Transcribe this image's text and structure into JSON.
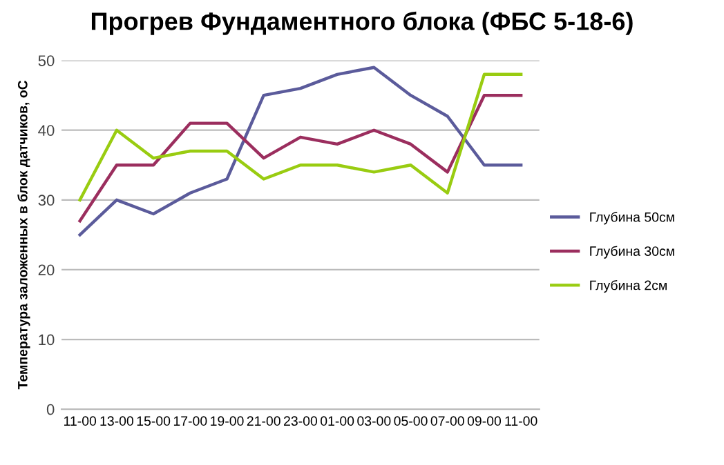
{
  "chart_data": {
    "type": "line",
    "title": "Прогрев Фундаментного блока (ФБС 5-18-6)",
    "ylabel": "Температура заложенных в блок датчиков, оС",
    "categories": [
      "11-00",
      "13-00",
      "15-00",
      "17-00",
      "19-00",
      "21-00",
      "23-00",
      "01-00",
      "03-00",
      "05-00",
      "07-00",
      "09-00",
      "11-00"
    ],
    "series": [
      {
        "name": "Глубина 50см",
        "color": "#5b5b9b",
        "values": [
          25,
          30,
          28,
          31,
          33,
          45,
          46,
          48,
          49,
          45,
          42,
          35,
          35
        ]
      },
      {
        "name": "Глубина 30см",
        "color": "#9b2e5e",
        "values": [
          27,
          35,
          35,
          41,
          41,
          36,
          39,
          38,
          40,
          38,
          34,
          45,
          45
        ]
      },
      {
        "name": "Глубина 2см",
        "color": "#99cc11",
        "values": [
          30,
          40,
          36,
          37,
          37,
          33,
          35,
          35,
          34,
          35,
          31,
          48,
          48
        ]
      }
    ],
    "ylim": [
      0,
      50
    ],
    "yticks": [
      0,
      10,
      20,
      30,
      40,
      50
    ],
    "grid": "y",
    "legend": "right",
    "marker": "none",
    "line_style": "solid"
  }
}
